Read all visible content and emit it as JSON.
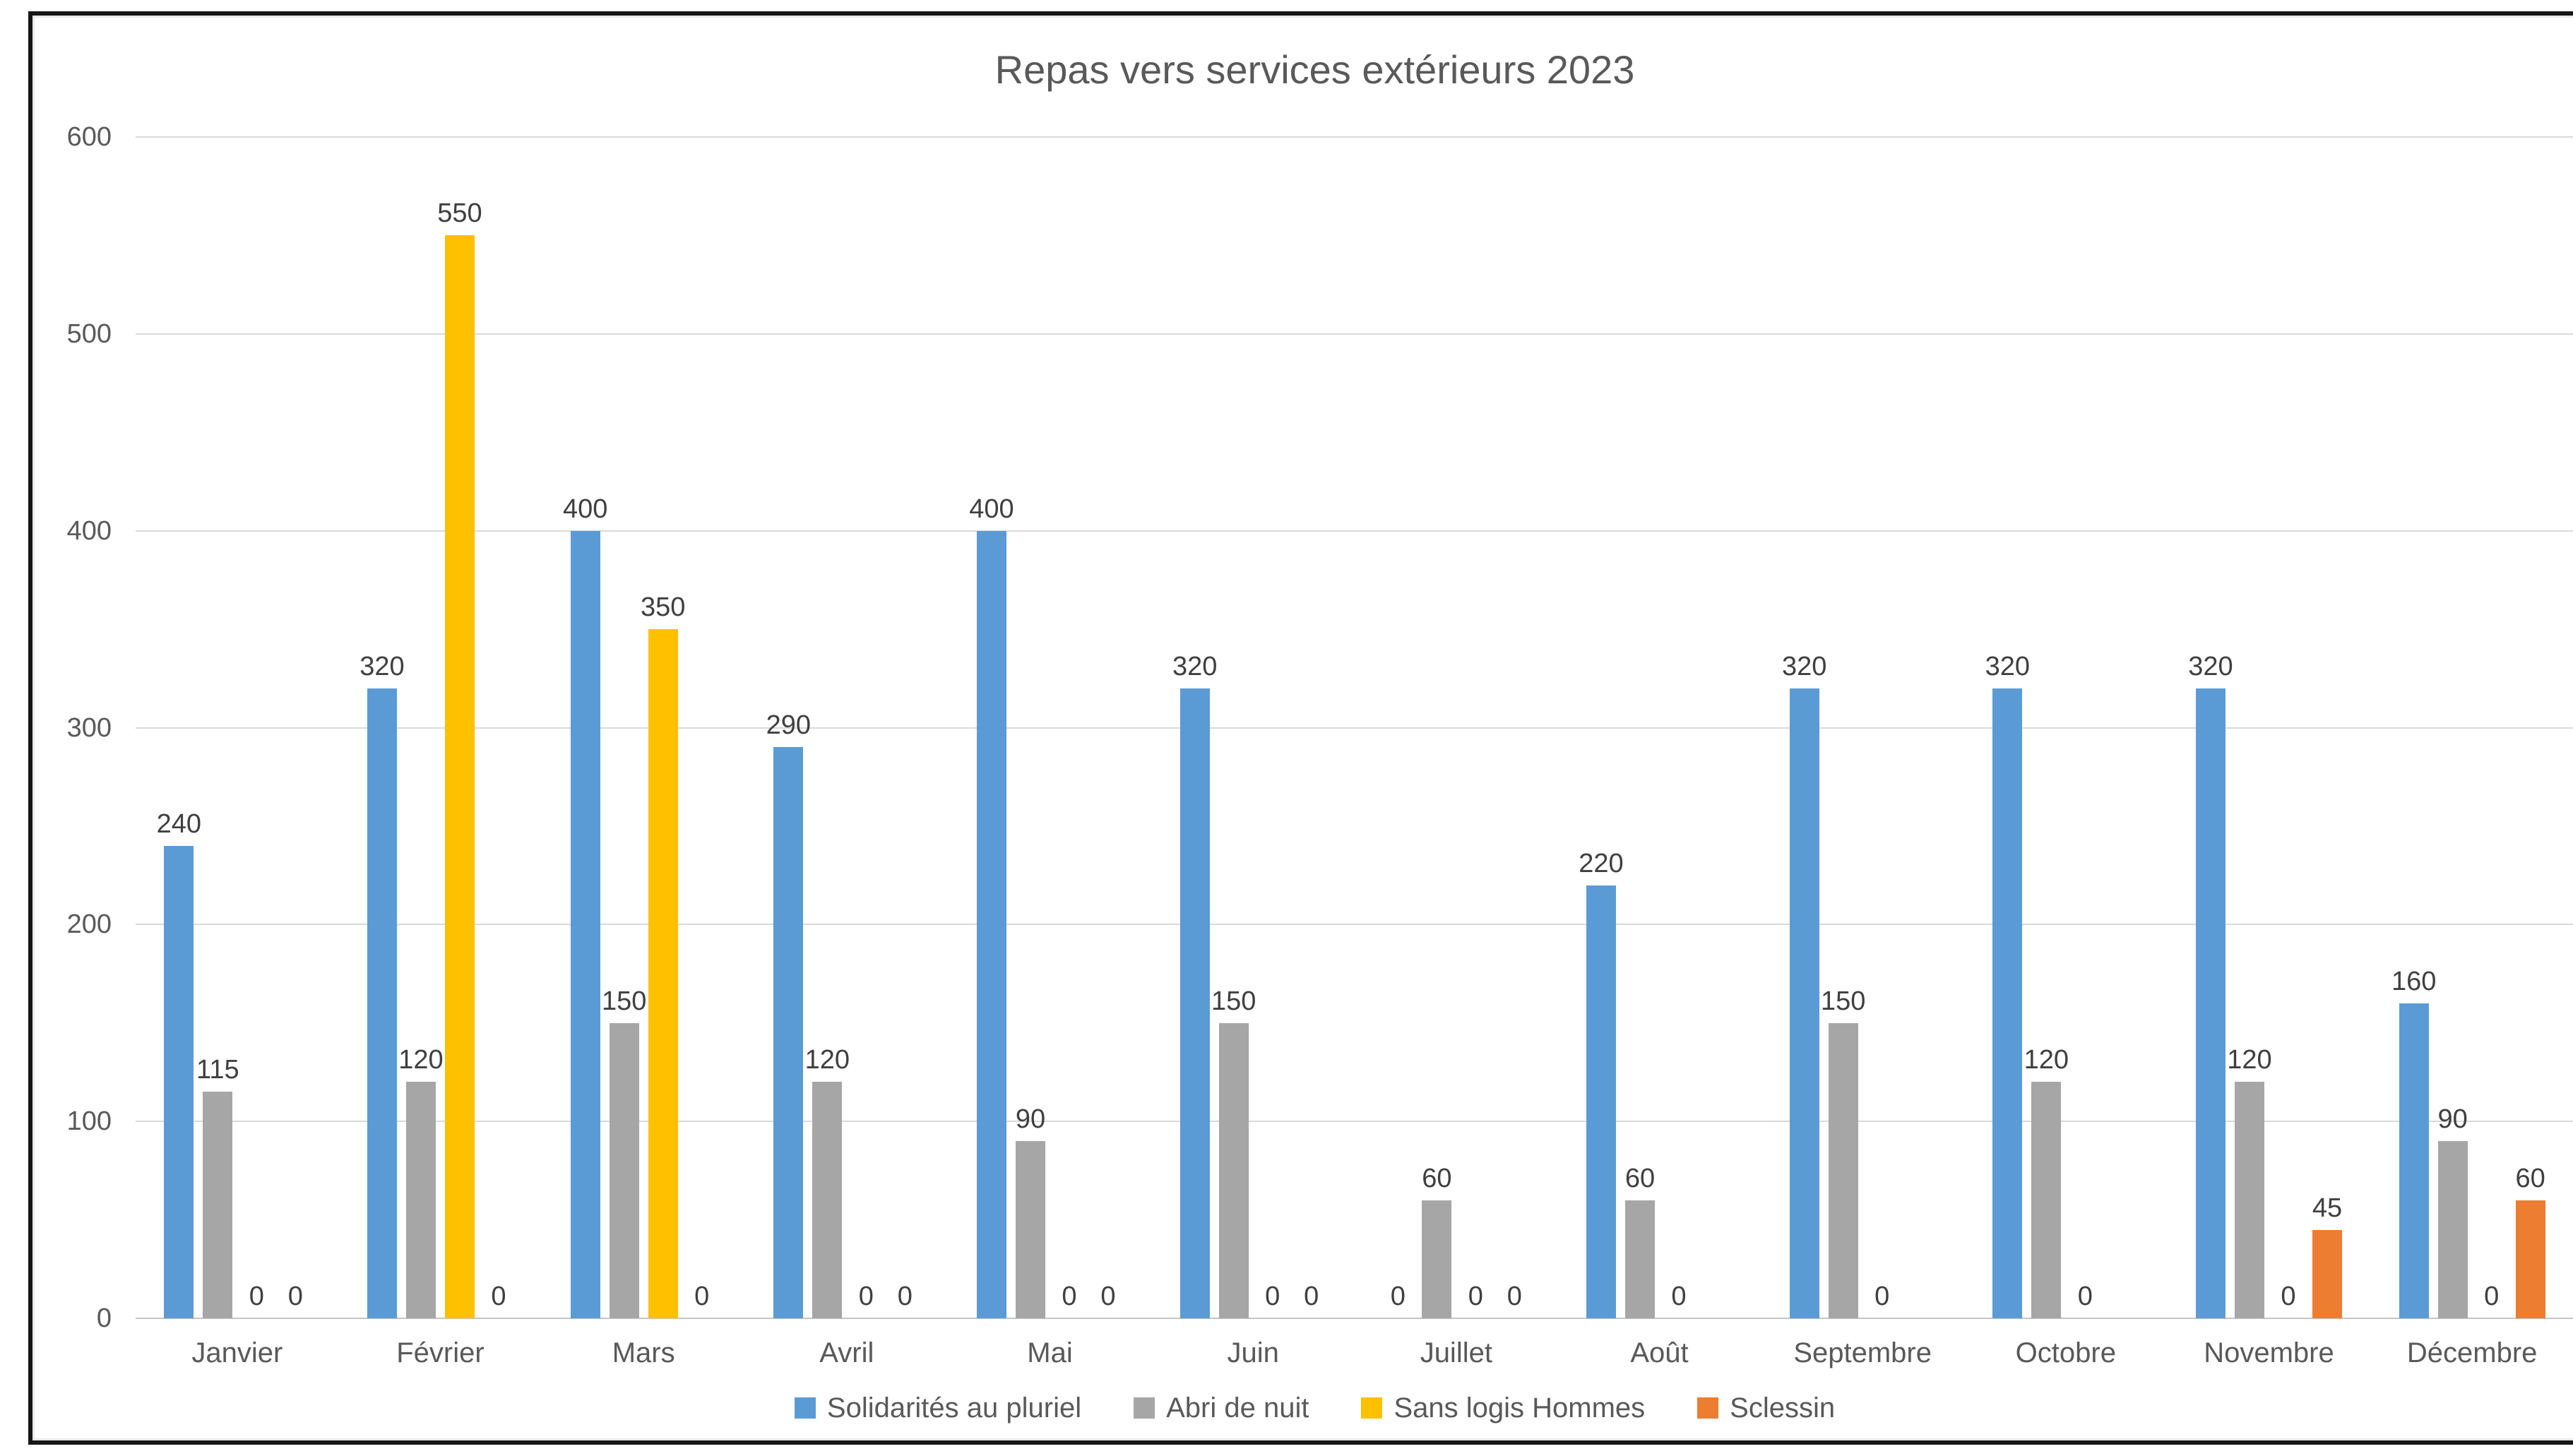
{
  "chart_data": {
    "type": "bar",
    "title": "Repas vers services extérieurs 2023",
    "categories": [
      "Janvier",
      "Février",
      "Mars",
      "Avril",
      "Mai",
      "Juin",
      "Juillet",
      "Août",
      "Septembre",
      "Octobre",
      "Novembre",
      "Décembre"
    ],
    "series": [
      {
        "name": "Solidarités au pluriel",
        "color": "#5B9BD5",
        "values": [
          240,
          320,
          400,
          290,
          400,
          320,
          0,
          220,
          320,
          320,
          320,
          160
        ]
      },
      {
        "name": "Abri de nuit",
        "color": "#A6A6A6",
        "values": [
          115,
          120,
          150,
          120,
          90,
          150,
          60,
          60,
          150,
          120,
          120,
          90
        ]
      },
      {
        "name": "Sans logis Hommes",
        "color": "#FFC000",
        "values": [
          0,
          550,
          350,
          0,
          0,
          0,
          0,
          0,
          0,
          0,
          0,
          0
        ]
      },
      {
        "name": "Sclessin",
        "color": "#ED7D31",
        "values": [
          0,
          0,
          0,
          0,
          0,
          0,
          0,
          null,
          null,
          null,
          45,
          60
        ]
      }
    ],
    "ylim": [
      0,
      600
    ],
    "yticks": [
      0,
      100,
      200,
      300,
      400,
      500,
      600
    ],
    "grid": "horizontal",
    "legend_position": "bottom",
    "data_labels": true,
    "note_null_values": "null = no bar and no data label shown in source chart"
  },
  "colors": {
    "title_text": "#595959",
    "axis_text": "#595959",
    "data_label_text": "#3F3F3F",
    "gridline": "#D9D9D9",
    "figure_border": "#161616",
    "background": "#FFFFFF"
  }
}
